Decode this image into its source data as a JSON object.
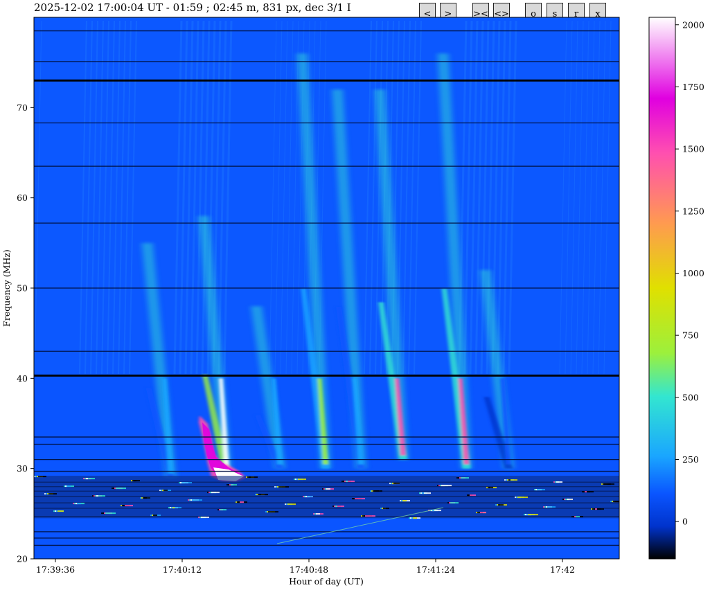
{
  "header": {
    "title": "2025-12-02 17:00:04 UT - 01:59 ; 02:45 m, 831 px, dec 3/1 I"
  },
  "toolbar": {
    "buttons": [
      {
        "name": "prev-button",
        "label": "<"
      },
      {
        "name": "next-button",
        "label": ">"
      },
      {
        "name": "zoom-in-button",
        "label": "><"
      },
      {
        "name": "zoom-out-button",
        "label": "<>"
      },
      {
        "name": "o-button",
        "label": "o"
      },
      {
        "name": "s-button",
        "label": "s"
      },
      {
        "name": "r-button",
        "label": "r"
      },
      {
        "name": "x-button",
        "label": "x"
      }
    ]
  },
  "colors": {
    "background": "#0a55ff",
    "colormap": [
      "#000000",
      "#0033cc",
      "#0a55ff",
      "#1aa6ff",
      "#33e6d0",
      "#9cf03c",
      "#e0e000",
      "#ff9a50",
      "#ff4fb0",
      "#e000e0",
      "#ffffff"
    ]
  },
  "chart_data": {
    "type": "heatmap",
    "title": "2025-12-02 17:00:04 UT - 01:59 ; 02:45 m, 831 px, dec 3/1 I",
    "xlabel": "Hour of day (UT)",
    "ylabel": "Frequency (MHz)",
    "x_ticks": [
      "17:39:36",
      "17:40:12",
      "17:40:48",
      "17:41:24",
      "17:42"
    ],
    "y_ticks": [
      20,
      30,
      40,
      50,
      60,
      70
    ],
    "ylim": [
      20,
      80
    ],
    "colorbar": {
      "ticks": [
        0,
        250,
        500,
        750,
        1000,
        1250,
        1500,
        1750,
        2000
      ],
      "range": [
        -150,
        2030
      ]
    },
    "bursts": [
      {
        "time": "17:40:22",
        "freq_low": 29,
        "freq_high": 58,
        "peak": 2030
      },
      {
        "time": "17:40:06",
        "freq_low": 29,
        "freq_high": 55,
        "peak": 600
      },
      {
        "time": "17:40:37",
        "freq_low": 30,
        "freq_high": 48,
        "peak": 500
      },
      {
        "time": "17:40:50",
        "freq_low": 30,
        "freq_high": 76,
        "peak": 1000
      },
      {
        "time": "17:41:00",
        "freq_low": 30,
        "freq_high": 72,
        "peak": 500
      },
      {
        "time": "17:41:12",
        "freq_low": 31,
        "freq_high": 72,
        "peak": 1700
      },
      {
        "time": "17:41:30",
        "freq_low": 30,
        "freq_high": 76,
        "peak": 1500
      },
      {
        "time": "17:41:42",
        "freq_low": 30,
        "freq_high": 52,
        "peak": 300
      }
    ]
  }
}
